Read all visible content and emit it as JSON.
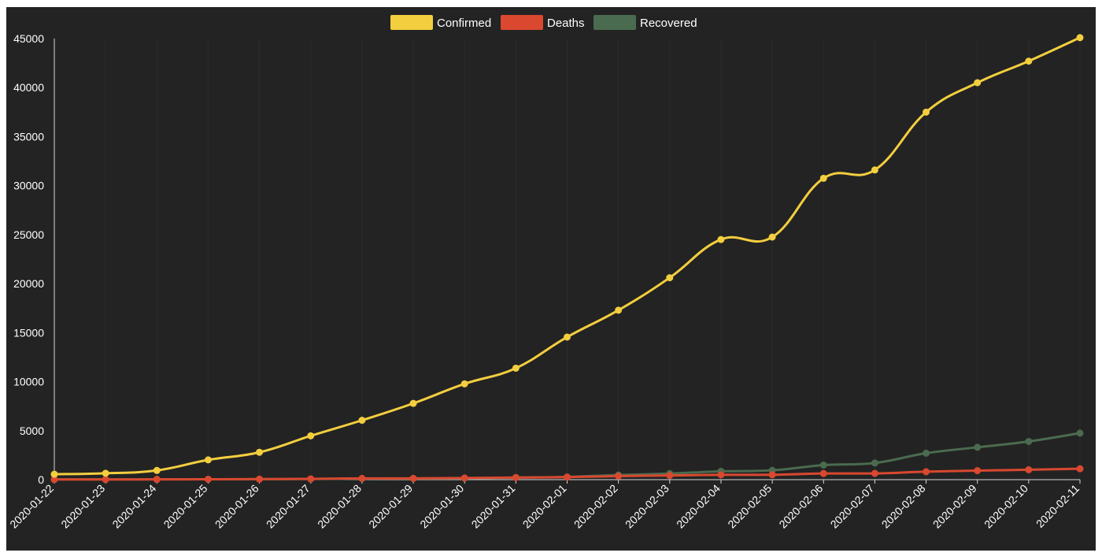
{
  "chart_data": {
    "type": "line",
    "title": "",
    "xlabel": "",
    "ylabel": "",
    "ylim": [
      0,
      45000
    ],
    "y_ticks": [
      0,
      5000,
      10000,
      15000,
      20000,
      25000,
      30000,
      35000,
      40000,
      45000
    ],
    "legend_position": "top-center",
    "grid": true,
    "background_color": "#232323",
    "x": [
      "2020-01-22",
      "2020-01-23",
      "2020-01-24",
      "2020-01-25",
      "2020-01-26",
      "2020-01-27",
      "2020-01-28",
      "2020-01-29",
      "2020-01-30",
      "2020-01-31",
      "2020-02-01",
      "2020-02-02",
      "2020-02-03",
      "2020-02-04",
      "2020-02-05",
      "2020-02-06",
      "2020-02-07",
      "2020-02-08",
      "2020-02-09",
      "2020-02-10",
      "2020-02-11"
    ],
    "series": [
      {
        "name": "Confirmed",
        "color": "#f3ce3f",
        "values": [
          555,
          653,
          941,
          2019,
          2794,
          4473,
          6057,
          7783,
          9776,
          11374,
          14549,
          17289,
          20606,
          24503,
          24750,
          30750,
          31600,
          37500,
          40500,
          42700,
          45100
        ]
      },
      {
        "name": "Deaths",
        "color": "#d9482f",
        "values": [
          17,
          18,
          26,
          42,
          56,
          82,
          131,
          133,
          171,
          213,
          259,
          362,
          426,
          492,
          500,
          630,
          640,
          810,
          920,
          1010,
          1113
        ]
      },
      {
        "name": "Recovered",
        "color": "#4a6b4f",
        "values": [
          28,
          30,
          36,
          39,
          52,
          61,
          107,
          126,
          143,
          222,
          284,
          472,
          623,
          852,
          950,
          1490,
          1700,
          2700,
          3300,
          3900,
          4750
        ]
      }
    ]
  }
}
